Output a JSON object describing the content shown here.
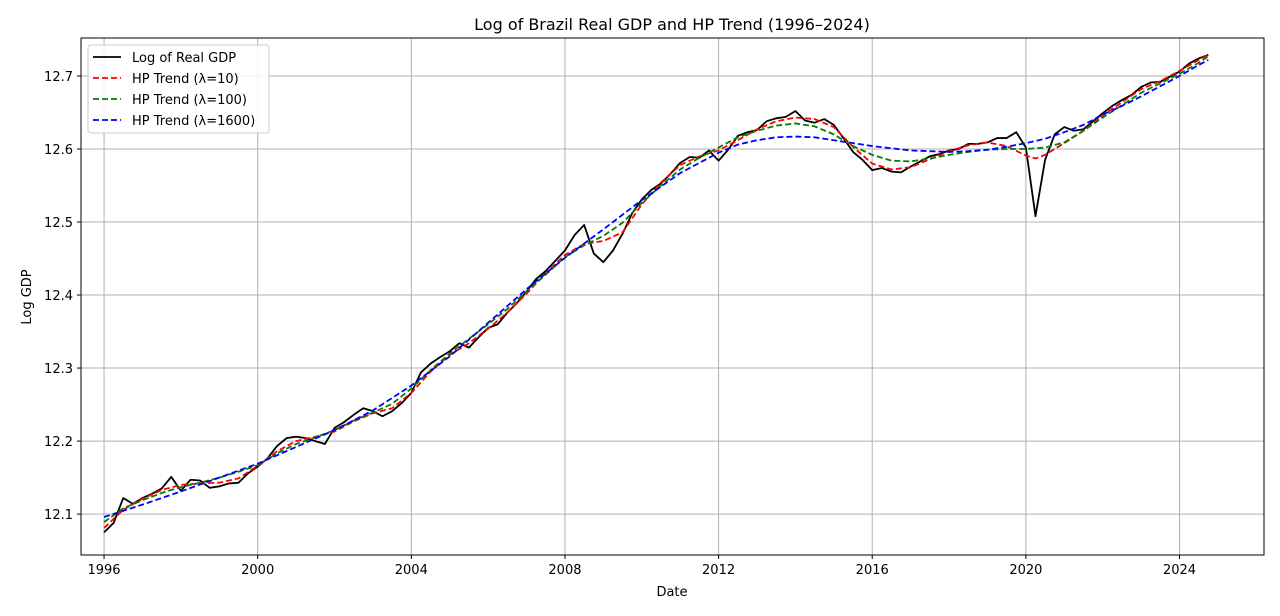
{
  "chart_data": {
    "type": "line",
    "title": "Log of Brazil Real GDP and HP Trend (1996–2024)",
    "xlabel": "Date",
    "ylabel": "Log GDP",
    "x_ticks": [
      1996,
      2000,
      2004,
      2008,
      2012,
      2016,
      2020,
      2024
    ],
    "y_ticks": [
      "12.1",
      "12.2",
      "12.3",
      "12.4",
      "12.5",
      "12.6",
      "12.7"
    ],
    "xlim": [
      1995.4,
      2026.2
    ],
    "ylim": [
      12.044,
      12.752
    ],
    "grid": true,
    "legend_position": "top-left",
    "series": [
      {
        "name": "Log of Real GDP",
        "color": "#000000",
        "dash": "solid",
        "points": [
          [
            1996.0,
            12.075
          ],
          [
            1996.25,
            12.088
          ],
          [
            1996.5,
            12.122
          ],
          [
            1996.75,
            12.114
          ],
          [
            1997.0,
            12.122
          ],
          [
            1997.25,
            12.128
          ],
          [
            1997.5,
            12.135
          ],
          [
            1997.75,
            12.151
          ],
          [
            1998.0,
            12.132
          ],
          [
            1998.25,
            12.147
          ],
          [
            1998.5,
            12.146
          ],
          [
            1998.75,
            12.136
          ],
          [
            1999.0,
            12.138
          ],
          [
            1999.25,
            12.142
          ],
          [
            1999.5,
            12.143
          ],
          [
            1999.75,
            12.156
          ],
          [
            2000.0,
            12.165
          ],
          [
            2000.25,
            12.176
          ],
          [
            2000.5,
            12.193
          ],
          [
            2000.75,
            12.204
          ],
          [
            2001.0,
            12.206
          ],
          [
            2001.25,
            12.204
          ],
          [
            2001.5,
            12.2
          ],
          [
            2001.75,
            12.196
          ],
          [
            2002.0,
            12.218
          ],
          [
            2002.25,
            12.226
          ],
          [
            2002.5,
            12.236
          ],
          [
            2002.75,
            12.245
          ],
          [
            2003.0,
            12.241
          ],
          [
            2003.25,
            12.234
          ],
          [
            2003.5,
            12.241
          ],
          [
            2003.75,
            12.252
          ],
          [
            2004.0,
            12.266
          ],
          [
            2004.25,
            12.294
          ],
          [
            2004.5,
            12.306
          ],
          [
            2004.75,
            12.315
          ],
          [
            2005.0,
            12.323
          ],
          [
            2005.25,
            12.334
          ],
          [
            2005.5,
            12.328
          ],
          [
            2005.75,
            12.342
          ],
          [
            2006.0,
            12.355
          ],
          [
            2006.25,
            12.36
          ],
          [
            2006.5,
            12.376
          ],
          [
            2006.75,
            12.389
          ],
          [
            2007.0,
            12.405
          ],
          [
            2007.25,
            12.422
          ],
          [
            2007.5,
            12.433
          ],
          [
            2007.75,
            12.447
          ],
          [
            2008.0,
            12.461
          ],
          [
            2008.25,
            12.482
          ],
          [
            2008.5,
            12.496
          ],
          [
            2008.75,
            12.457
          ],
          [
            2009.0,
            12.445
          ],
          [
            2009.25,
            12.461
          ],
          [
            2009.5,
            12.484
          ],
          [
            2009.75,
            12.512
          ],
          [
            2010.0,
            12.531
          ],
          [
            2010.25,
            12.544
          ],
          [
            2010.5,
            12.553
          ],
          [
            2010.75,
            12.566
          ],
          [
            2011.0,
            12.581
          ],
          [
            2011.25,
            12.589
          ],
          [
            2011.5,
            12.588
          ],
          [
            2011.75,
            12.598
          ],
          [
            2012.0,
            12.584
          ],
          [
            2012.25,
            12.599
          ],
          [
            2012.5,
            12.618
          ],
          [
            2012.75,
            12.623
          ],
          [
            2013.0,
            12.626
          ],
          [
            2013.25,
            12.638
          ],
          [
            2013.5,
            12.642
          ],
          [
            2013.75,
            12.644
          ],
          [
            2014.0,
            12.652
          ],
          [
            2014.25,
            12.639
          ],
          [
            2014.5,
            12.636
          ],
          [
            2014.75,
            12.641
          ],
          [
            2015.0,
            12.633
          ],
          [
            2015.25,
            12.615
          ],
          [
            2015.5,
            12.596
          ],
          [
            2015.75,
            12.585
          ],
          [
            2016.0,
            12.571
          ],
          [
            2016.25,
            12.574
          ],
          [
            2016.5,
            12.569
          ],
          [
            2016.75,
            12.568
          ],
          [
            2017.0,
            12.576
          ],
          [
            2017.25,
            12.583
          ],
          [
            2017.5,
            12.59
          ],
          [
            2017.75,
            12.593
          ],
          [
            2018.0,
            12.598
          ],
          [
            2018.25,
            12.6
          ],
          [
            2018.5,
            12.607
          ],
          [
            2018.75,
            12.607
          ],
          [
            2019.0,
            12.609
          ],
          [
            2019.25,
            12.615
          ],
          [
            2019.5,
            12.615
          ],
          [
            2019.75,
            12.623
          ],
          [
            2020.0,
            12.602
          ],
          [
            2020.25,
            12.508
          ],
          [
            2020.5,
            12.585
          ],
          [
            2020.75,
            12.62
          ],
          [
            2021.0,
            12.63
          ],
          [
            2021.25,
            12.625
          ],
          [
            2021.5,
            12.627
          ],
          [
            2021.75,
            12.638
          ],
          [
            2022.0,
            12.649
          ],
          [
            2022.25,
            12.659
          ],
          [
            2022.5,
            12.667
          ],
          [
            2022.75,
            12.674
          ],
          [
            2023.0,
            12.685
          ],
          [
            2023.25,
            12.691
          ],
          [
            2023.5,
            12.692
          ],
          [
            2023.75,
            12.699
          ],
          [
            2024.0,
            12.706
          ],
          [
            2024.25,
            12.717
          ],
          [
            2024.5,
            12.724
          ],
          [
            2024.75,
            12.729
          ]
        ]
      },
      {
        "name": "HP Trend (λ=10)",
        "color": "#ff0000",
        "dash": "dashed",
        "points": [
          [
            1996.0,
            12.081
          ],
          [
            1996.5,
            12.106
          ],
          [
            1997.0,
            12.121
          ],
          [
            1997.5,
            12.133
          ],
          [
            1998.0,
            12.14
          ],
          [
            1998.5,
            12.142
          ],
          [
            1999.0,
            12.143
          ],
          [
            1999.5,
            12.149
          ],
          [
            2000.0,
            12.166
          ],
          [
            2000.5,
            12.186
          ],
          [
            2001.0,
            12.2
          ],
          [
            2001.5,
            12.206
          ],
          [
            2002.0,
            12.213
          ],
          [
            2002.5,
            12.227
          ],
          [
            2003.0,
            12.238
          ],
          [
            2003.5,
            12.245
          ],
          [
            2004.0,
            12.266
          ],
          [
            2004.5,
            12.295
          ],
          [
            2005.0,
            12.318
          ],
          [
            2005.5,
            12.334
          ],
          [
            2006.0,
            12.354
          ],
          [
            2006.5,
            12.376
          ],
          [
            2007.0,
            12.402
          ],
          [
            2007.5,
            12.43
          ],
          [
            2008.0,
            12.455
          ],
          [
            2008.5,
            12.47
          ],
          [
            2009.0,
            12.474
          ],
          [
            2009.5,
            12.486
          ],
          [
            2010.0,
            12.524
          ],
          [
            2010.5,
            12.554
          ],
          [
            2011.0,
            12.578
          ],
          [
            2011.5,
            12.59
          ],
          [
            2012.0,
            12.598
          ],
          [
            2012.5,
            12.612
          ],
          [
            2013.0,
            12.627
          ],
          [
            2013.5,
            12.638
          ],
          [
            2014.0,
            12.643
          ],
          [
            2014.5,
            12.641
          ],
          [
            2015.0,
            12.63
          ],
          [
            2015.5,
            12.603
          ],
          [
            2016.0,
            12.58
          ],
          [
            2016.5,
            12.572
          ],
          [
            2017.0,
            12.575
          ],
          [
            2017.5,
            12.586
          ],
          [
            2018.0,
            12.597
          ],
          [
            2018.5,
            12.605
          ],
          [
            2019.0,
            12.609
          ],
          [
            2019.5,
            12.604
          ],
          [
            2020.0,
            12.591
          ],
          [
            2020.25,
            12.587
          ],
          [
            2020.5,
            12.592
          ],
          [
            2021.0,
            12.608
          ],
          [
            2021.5,
            12.625
          ],
          [
            2022.0,
            12.646
          ],
          [
            2022.5,
            12.664
          ],
          [
            2023.0,
            12.682
          ],
          [
            2023.5,
            12.693
          ],
          [
            2024.0,
            12.707
          ],
          [
            2024.5,
            12.722
          ],
          [
            2024.75,
            12.729
          ]
        ]
      },
      {
        "name": "HP Trend (λ=100)",
        "color": "#008000",
        "dash": "dashed",
        "points": [
          [
            1996.0,
            12.089
          ],
          [
            1996.5,
            12.108
          ],
          [
            1997.0,
            12.119
          ],
          [
            1997.5,
            12.129
          ],
          [
            1998.0,
            12.137
          ],
          [
            1998.5,
            12.143
          ],
          [
            1999.0,
            12.15
          ],
          [
            1999.5,
            12.158
          ],
          [
            2000.0,
            12.167
          ],
          [
            2000.5,
            12.183
          ],
          [
            2001.0,
            12.196
          ],
          [
            2001.5,
            12.205
          ],
          [
            2002.0,
            12.215
          ],
          [
            2002.5,
            12.228
          ],
          [
            2003.0,
            12.239
          ],
          [
            2003.5,
            12.251
          ],
          [
            2004.0,
            12.272
          ],
          [
            2004.5,
            12.297
          ],
          [
            2005.0,
            12.32
          ],
          [
            2005.5,
            12.34
          ],
          [
            2006.0,
            12.36
          ],
          [
            2006.5,
            12.381
          ],
          [
            2007.0,
            12.405
          ],
          [
            2007.5,
            12.428
          ],
          [
            2008.0,
            12.452
          ],
          [
            2008.5,
            12.468
          ],
          [
            2009.0,
            12.481
          ],
          [
            2009.5,
            12.499
          ],
          [
            2010.0,
            12.526
          ],
          [
            2010.5,
            12.55
          ],
          [
            2011.0,
            12.572
          ],
          [
            2011.5,
            12.588
          ],
          [
            2012.0,
            12.602
          ],
          [
            2012.5,
            12.616
          ],
          [
            2013.0,
            12.625
          ],
          [
            2013.5,
            12.632
          ],
          [
            2014.0,
            12.635
          ],
          [
            2014.5,
            12.631
          ],
          [
            2015.0,
            12.62
          ],
          [
            2015.5,
            12.604
          ],
          [
            2016.0,
            12.592
          ],
          [
            2016.5,
            12.584
          ],
          [
            2017.0,
            12.583
          ],
          [
            2017.5,
            12.587
          ],
          [
            2018.0,
            12.592
          ],
          [
            2018.5,
            12.596
          ],
          [
            2019.0,
            12.599
          ],
          [
            2019.5,
            12.6
          ],
          [
            2020.0,
            12.6
          ],
          [
            2020.5,
            12.602
          ],
          [
            2021.0,
            12.609
          ],
          [
            2021.5,
            12.625
          ],
          [
            2022.0,
            12.643
          ],
          [
            2022.5,
            12.66
          ],
          [
            2023.0,
            12.677
          ],
          [
            2023.5,
            12.69
          ],
          [
            2024.0,
            12.703
          ],
          [
            2024.5,
            12.718
          ],
          [
            2024.75,
            12.727
          ]
        ]
      },
      {
        "name": "HP Trend (λ=1600)",
        "color": "#0000ff",
        "dash": "dashed",
        "points": [
          [
            1996.0,
            12.096
          ],
          [
            1997.0,
            12.113
          ],
          [
            1998.0,
            12.131
          ],
          [
            1999.0,
            12.15
          ],
          [
            2000.0,
            12.169
          ],
          [
            2001.0,
            12.192
          ],
          [
            2002.0,
            12.215
          ],
          [
            2003.0,
            12.242
          ],
          [
            2004.0,
            12.276
          ],
          [
            2005.0,
            12.316
          ],
          [
            2006.0,
            12.362
          ],
          [
            2007.0,
            12.408
          ],
          [
            2008.0,
            12.451
          ],
          [
            2009.0,
            12.49
          ],
          [
            2010.0,
            12.53
          ],
          [
            2011.0,
            12.567
          ],
          [
            2012.0,
            12.595
          ],
          [
            2012.5,
            12.606
          ],
          [
            2013.0,
            12.612
          ],
          [
            2013.5,
            12.616
          ],
          [
            2014.0,
            12.617
          ],
          [
            2014.5,
            12.616
          ],
          [
            2015.0,
            12.612
          ],
          [
            2015.5,
            12.608
          ],
          [
            2016.0,
            12.604
          ],
          [
            2016.5,
            12.601
          ],
          [
            2017.0,
            12.598
          ],
          [
            2017.5,
            12.597
          ],
          [
            2018.0,
            12.596
          ],
          [
            2018.5,
            12.597
          ],
          [
            2019.0,
            12.599
          ],
          [
            2019.5,
            12.603
          ],
          [
            2020.0,
            12.608
          ],
          [
            2020.5,
            12.614
          ],
          [
            2021.0,
            12.623
          ],
          [
            2021.5,
            12.633
          ],
          [
            2022.0,
            12.647
          ],
          [
            2022.5,
            12.659
          ],
          [
            2023.0,
            12.672
          ],
          [
            2023.5,
            12.686
          ],
          [
            2024.0,
            12.7
          ],
          [
            2024.5,
            12.715
          ],
          [
            2024.75,
            12.722
          ]
        ]
      }
    ]
  }
}
